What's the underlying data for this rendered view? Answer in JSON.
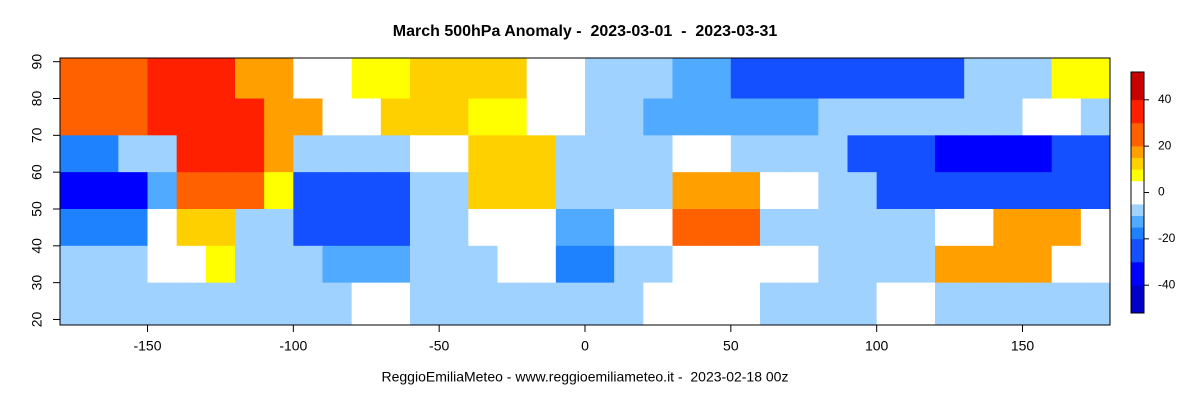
{
  "chart_data": {
    "type": "heatmap",
    "title": "March 500hPa Anomaly -  2023-03-01  -  2023-03-31",
    "footer": "ReggioEmiliaMeteo - www.reggioemiliameteo.it -  2023-02-18 00z",
    "xlim": [
      -180,
      180
    ],
    "ylim": [
      18.5,
      91
    ],
    "xticks": [
      -150,
      -100,
      -50,
      0,
      50,
      100,
      150
    ],
    "yticks": [
      20,
      30,
      40,
      50,
      60,
      70,
      80,
      90
    ],
    "lon_bins": [
      -180,
      -170,
      -160,
      -150,
      -140,
      -130,
      -120,
      -110,
      -100,
      -90,
      -80,
      -70,
      -60,
      -50,
      -40,
      -30,
      -20,
      -10,
      0,
      10,
      20,
      30,
      40,
      50,
      60,
      70,
      80,
      90,
      100,
      110,
      120,
      130,
      140,
      150,
      160,
      170,
      180
    ],
    "lat_bins": [
      91,
      80,
      70,
      60,
      50,
      40,
      30,
      18.5
    ],
    "values": [
      [
        20,
        20,
        20,
        30,
        30,
        30,
        15,
        15,
        0,
        0,
        5,
        5,
        10,
        10,
        10,
        10,
        0,
        0,
        -8,
        -8,
        -8,
        -12,
        -12,
        -25,
        -25,
        -25,
        -25,
        -25,
        -25,
        -25,
        -25,
        -10,
        -10,
        -10,
        5,
        5
      ],
      [
        20,
        20,
        20,
        30,
        30,
        30,
        30,
        15,
        15,
        0,
        0,
        10,
        10,
        10,
        5,
        5,
        0,
        0,
        -8,
        -8,
        -15,
        -15,
        -15,
        -15,
        -15,
        -15,
        -10,
        -10,
        -10,
        -10,
        -10,
        -10,
        -10,
        0,
        0,
        -10
      ],
      [
        -20,
        -20,
        -10,
        -10,
        30,
        30,
        30,
        15,
        -10,
        -10,
        -10,
        -10,
        3,
        3,
        12,
        12,
        12,
        -8,
        -8,
        -10,
        -10,
        0,
        0,
        -10,
        -10,
        -10,
        -10,
        -25,
        -25,
        -25,
        -35,
        -35,
        -35,
        -35,
        -25,
        -25
      ],
      [
        -35,
        -35,
        -35,
        -15,
        20,
        20,
        20,
        5,
        -25,
        -25,
        -25,
        -25,
        -8,
        -8,
        12,
        12,
        12,
        -10,
        -10,
        -8,
        -8,
        15,
        15,
        15,
        0,
        0,
        -10,
        -10,
        -25,
        -25,
        -25,
        -25,
        -25,
        -25,
        -25,
        -25
      ],
      [
        -20,
        -20,
        -20,
        0,
        10,
        10,
        -8,
        -8,
        -25,
        -25,
        -25,
        -25,
        -10,
        -10,
        0,
        0,
        0,
        -15,
        -15,
        0,
        0,
        20,
        20,
        20,
        -8,
        -8,
        -10,
        -10,
        -10,
        -10,
        0,
        0,
        15,
        15,
        15,
        -5
      ],
      [
        -10,
        -10,
        -10,
        0,
        0,
        5,
        -10,
        -10,
        -10,
        -15,
        -15,
        -15,
        -10,
        -10,
        -10,
        0,
        0,
        -20,
        -20,
        -10,
        -10,
        0,
        0,
        -3,
        -3,
        -3,
        -8,
        -8,
        -8,
        -8,
        15,
        15,
        15,
        15,
        0,
        0
      ],
      [
        -8,
        -8,
        -8,
        -8,
        -8,
        -8,
        -10,
        -10,
        -10,
        -10,
        0,
        0,
        -10,
        -10,
        -10,
        -10,
        -10,
        -10,
        -10,
        -10,
        0,
        0,
        0,
        0,
        -10,
        -10,
        -10,
        -10,
        0,
        0,
        -8,
        -8,
        -8,
        -8,
        -8,
        -8
      ]
    ],
    "colorbar": {
      "breaks": [
        -52,
        -40,
        -30,
        -20,
        -15,
        -10,
        -5,
        5,
        10,
        15,
        20,
        30,
        40,
        52
      ],
      "colors": [
        "#0000c8",
        "#0000ff",
        "#1450ff",
        "#1e82ff",
        "#50aaff",
        "#a0d2ff",
        "#ffffff",
        "#ffff00",
        "#ffd000",
        "#ffa000",
        "#ff6000",
        "#ff2000",
        "#c80000"
      ],
      "ticks": [
        -40,
        -20,
        0,
        20,
        40
      ]
    }
  }
}
